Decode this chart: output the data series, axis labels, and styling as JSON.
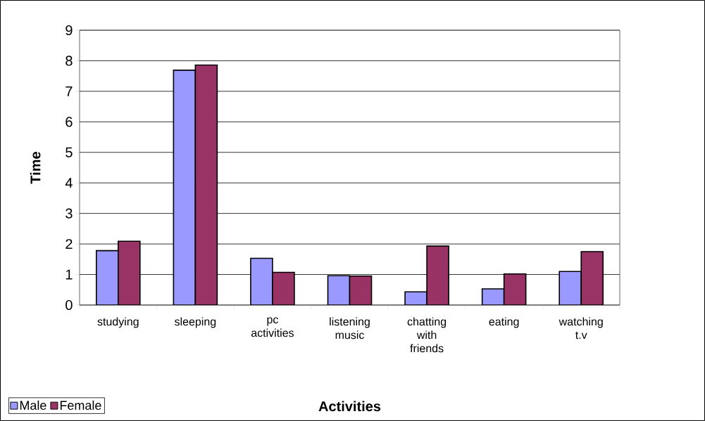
{
  "chart_data": {
    "type": "bar",
    "xlabel": "Activities",
    "ylabel": "Time",
    "categories": [
      "studying",
      "sleeping",
      "pc activities",
      "listening music",
      "chatting with friends",
      "eating",
      "watching t.v"
    ],
    "series": [
      {
        "name": "Male",
        "color": "#9999ff",
        "values": [
          1.78,
          7.69,
          1.53,
          0.96,
          0.43,
          0.53,
          1.1
        ]
      },
      {
        "name": "Female",
        "color": "#993366",
        "values": [
          2.09,
          7.86,
          1.07,
          0.95,
          1.93,
          1.02,
          1.75
        ]
      }
    ],
    "ylim": [
      0,
      9
    ],
    "yticks": [
      0,
      1,
      2,
      3,
      4,
      5,
      6,
      7,
      8,
      9
    ],
    "grid": "y",
    "legend": "bottom left"
  }
}
